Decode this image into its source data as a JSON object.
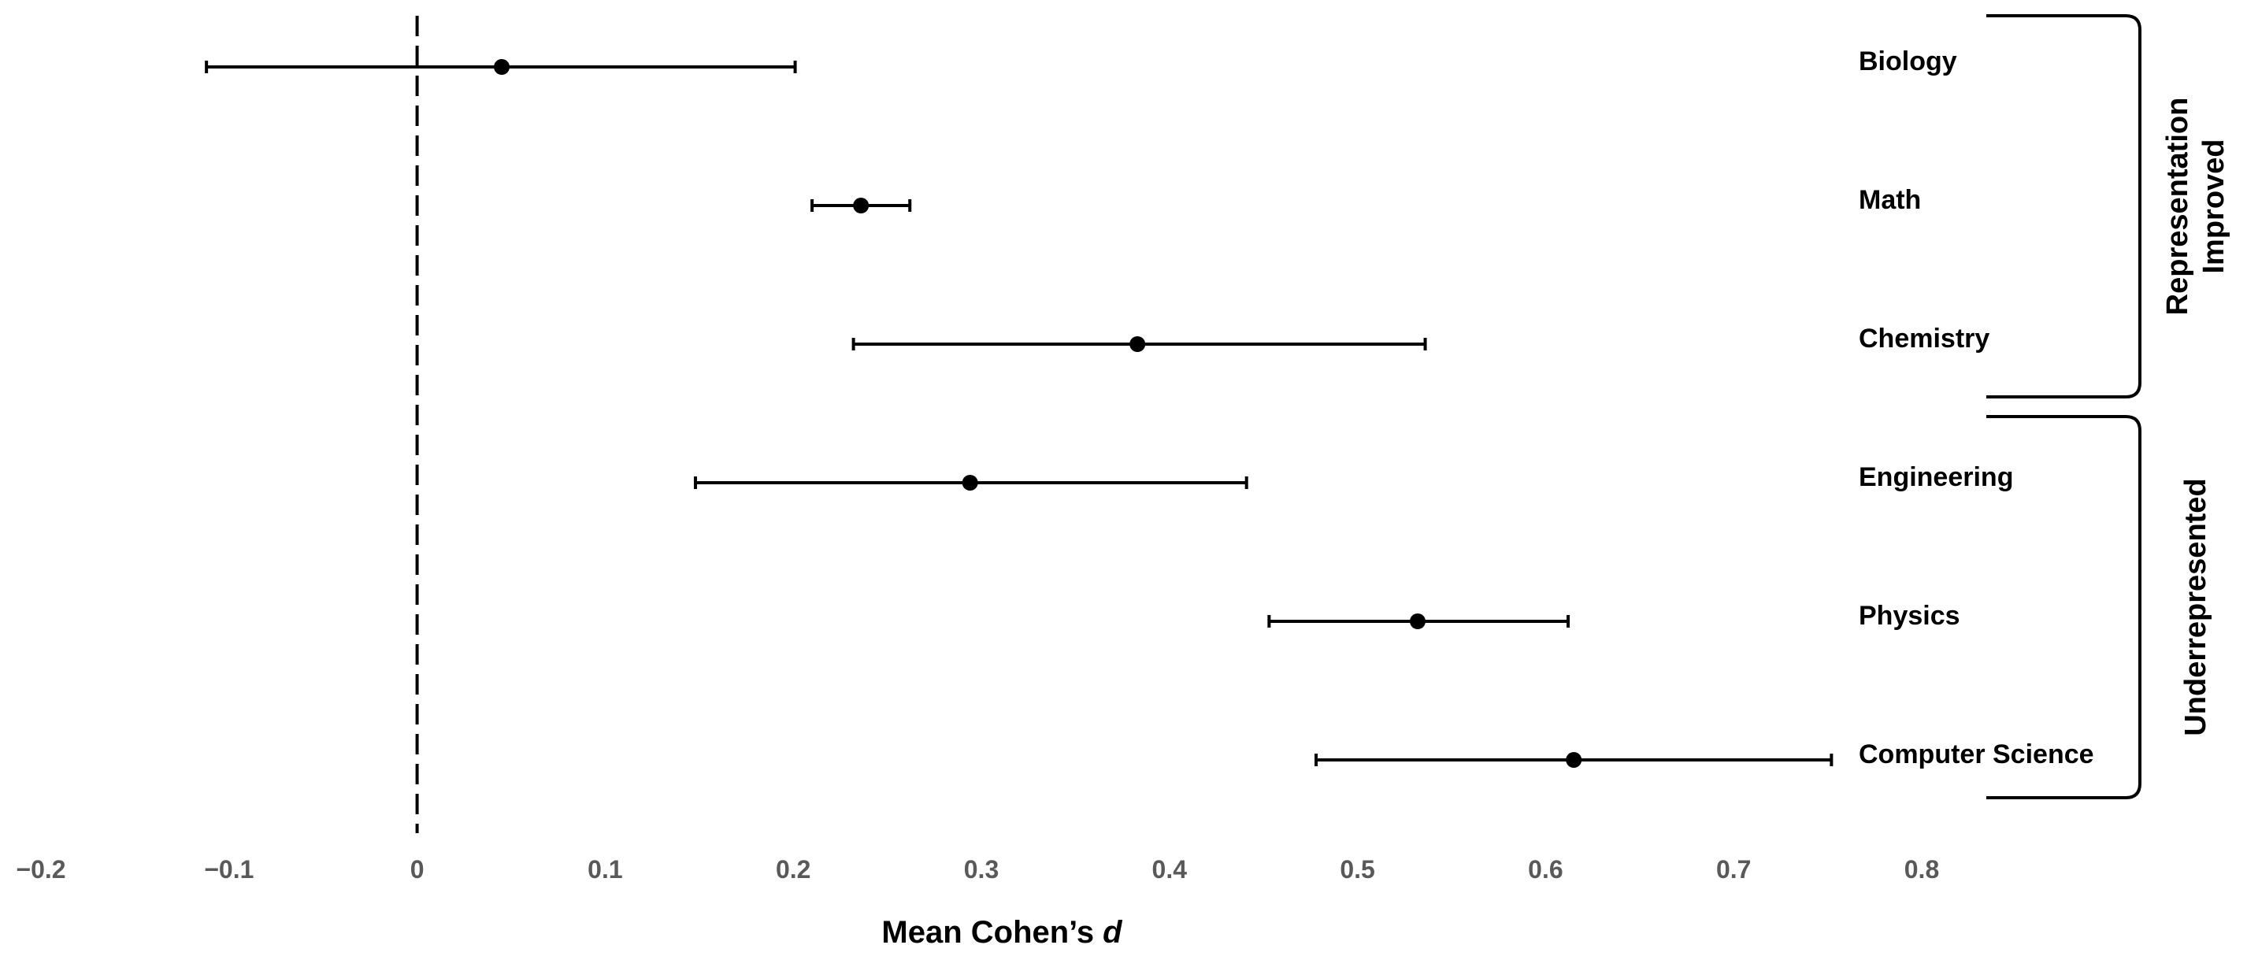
{
  "chart_data": {
    "type": "forest",
    "xlabel_main": "Mean Cohen’s ",
    "xlabel_italic": "d",
    "xlim": [
      -0.2,
      0.8
    ],
    "xticks": [
      -0.2,
      -0.1,
      0,
      0.1,
      0.2,
      0.3,
      0.4,
      0.5,
      0.6,
      0.7,
      0.8
    ],
    "xtick_labels": [
      "−0.2",
      "−0.1",
      "0",
      "0.1",
      "0.2",
      "0.3",
      "0.4",
      "0.5",
      "0.6",
      "0.7",
      "0.8"
    ],
    "reference_line": 0,
    "grid": false,
    "points": [
      {
        "label": "Biology",
        "mean": 0.045,
        "low": -0.112,
        "high": 0.201
      },
      {
        "label": "Math",
        "mean": 0.236,
        "low": 0.21,
        "high": 0.262
      },
      {
        "label": "Chemistry",
        "mean": 0.383,
        "low": 0.232,
        "high": 0.536
      },
      {
        "label": "Engineering",
        "mean": 0.294,
        "low": 0.148,
        "high": 0.441
      },
      {
        "label": "Physics",
        "mean": 0.532,
        "low": 0.453,
        "high": 0.612
      },
      {
        "label": "Computer Science",
        "mean": 0.615,
        "low": 0.478,
        "high": 0.752
      }
    ],
    "groups": [
      {
        "lines": [
          "Representation",
          "Improved"
        ],
        "members": [
          "Biology",
          "Math",
          "Chemistry"
        ]
      },
      {
        "lines": [
          "Underrepresented"
        ],
        "members": [
          "Engineering",
          "Physics",
          "Computer Science"
        ]
      }
    ]
  }
}
